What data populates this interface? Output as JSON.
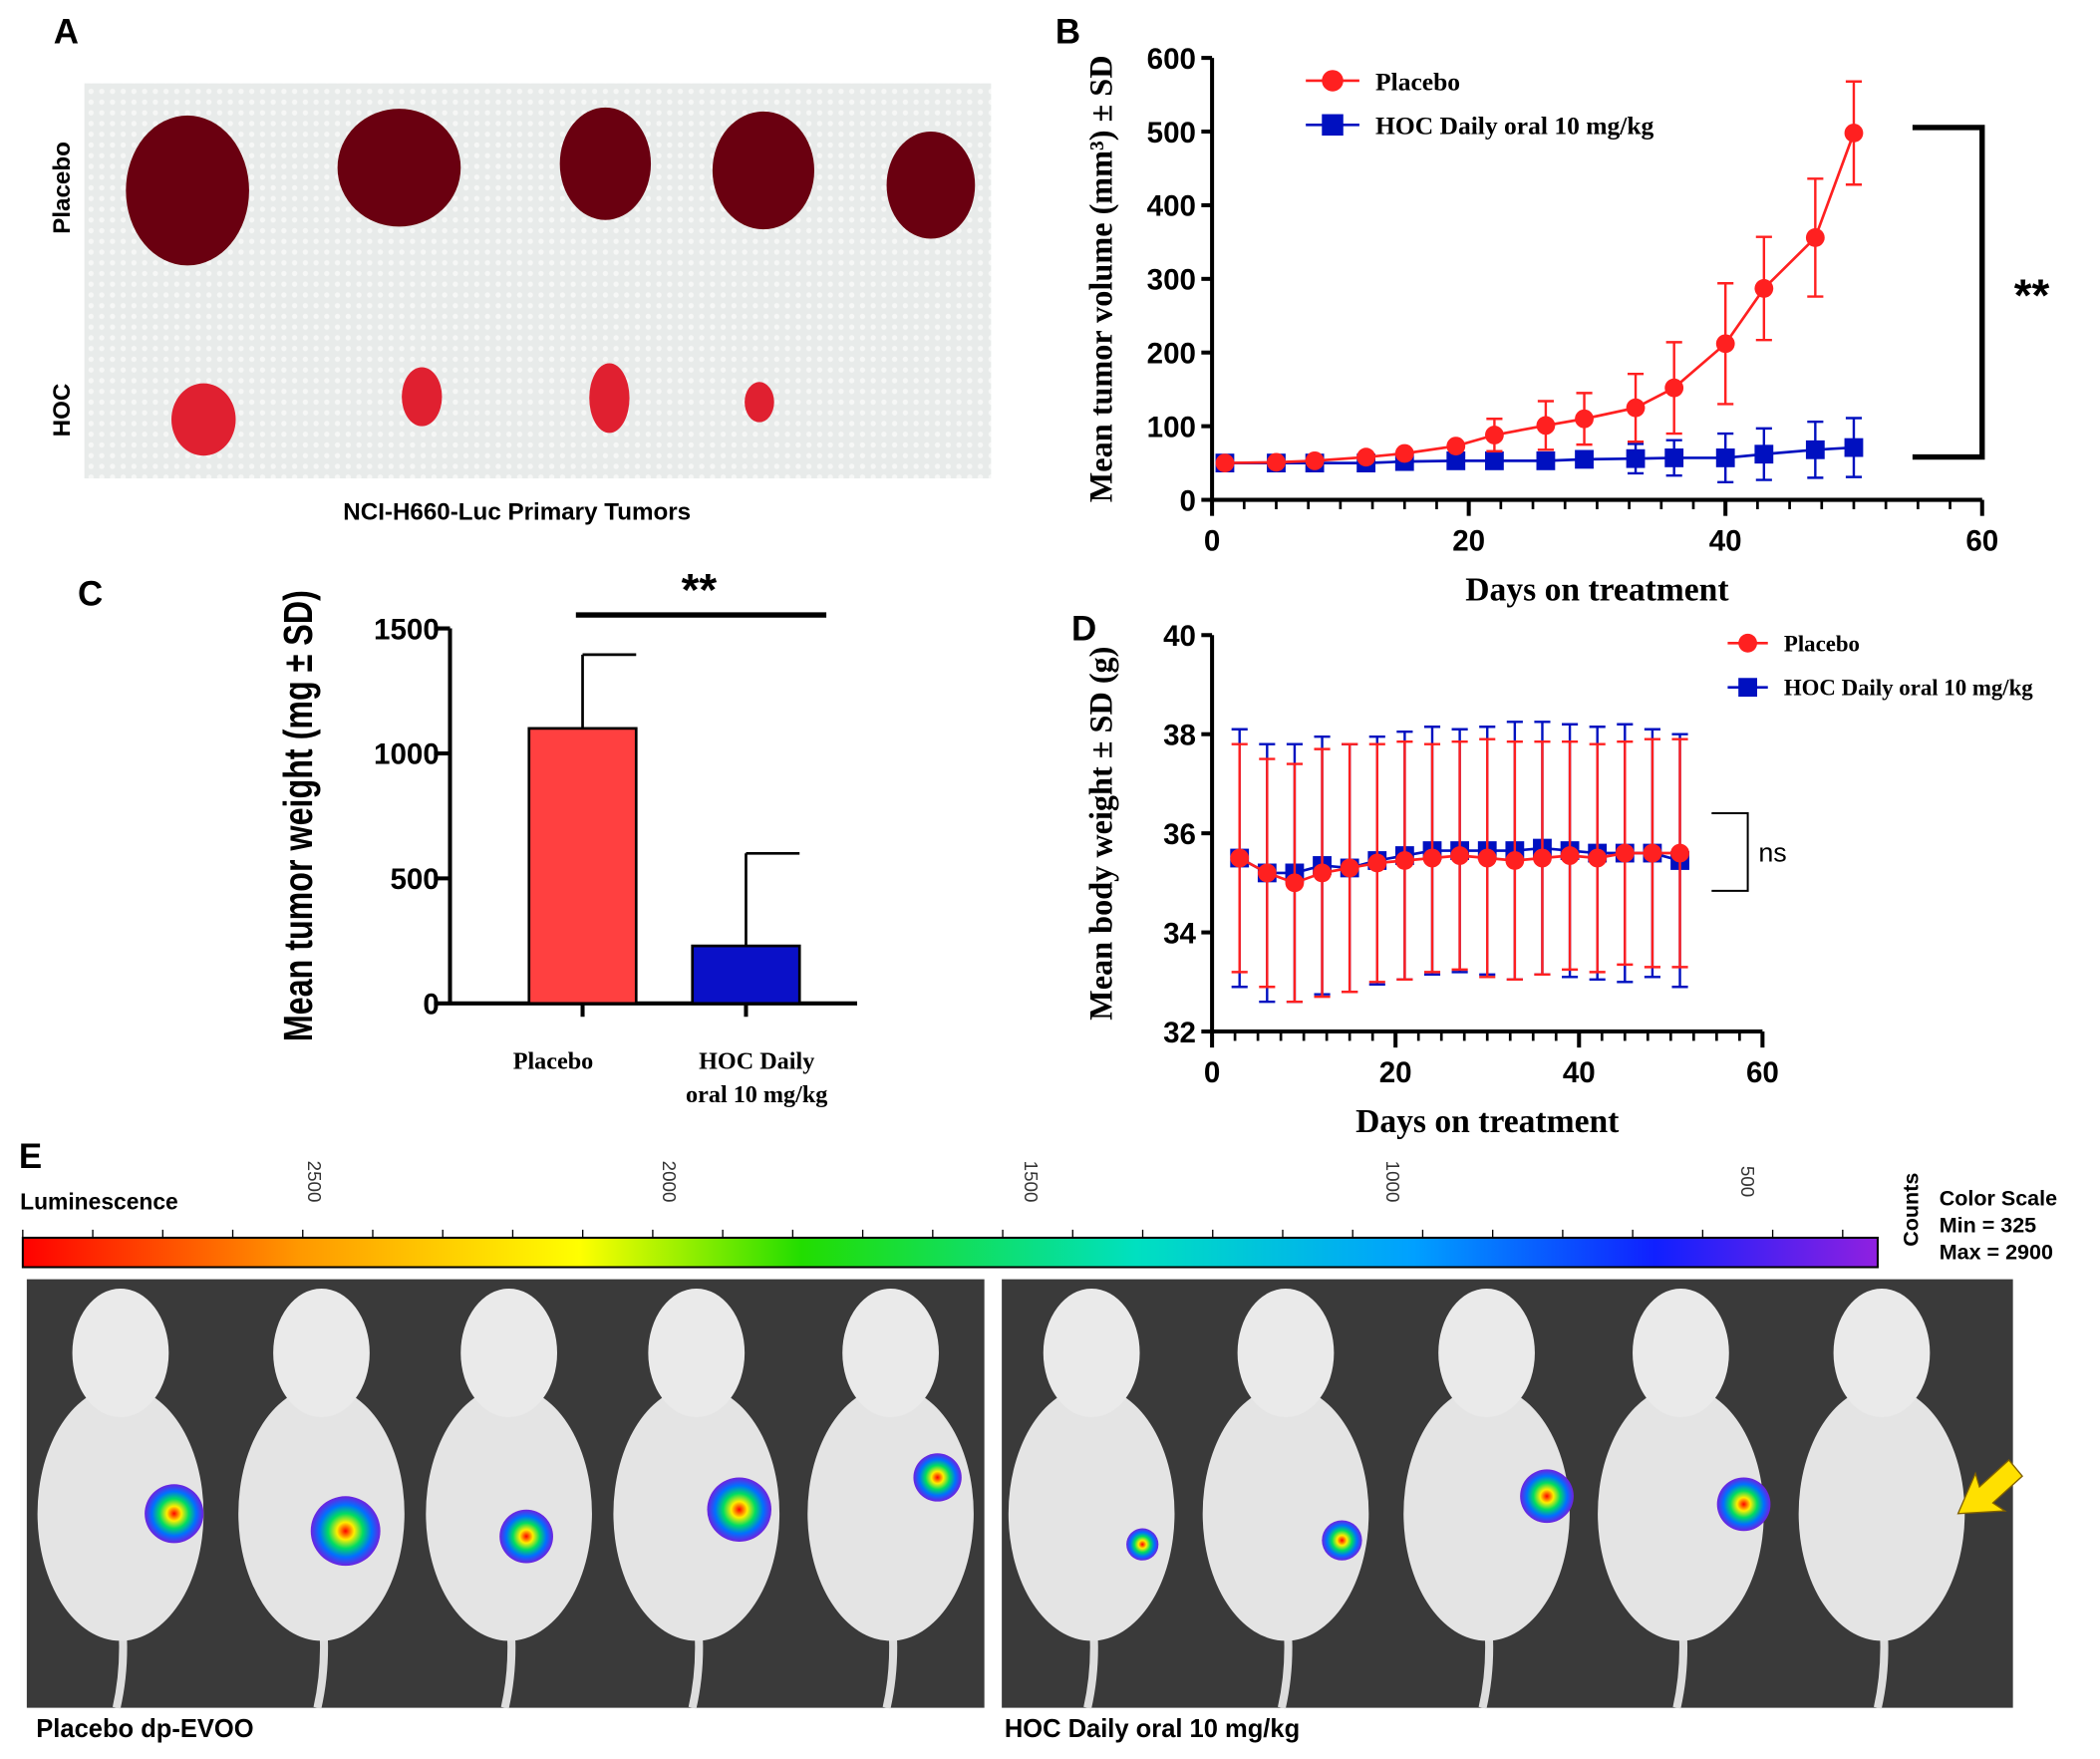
{
  "panels": {
    "a": "A",
    "b": "B",
    "c": "C",
    "d": "D",
    "e": "E"
  },
  "panel_a": {
    "row_labels": [
      "Placebo",
      "HOC"
    ],
    "caption": "NCI-H660-Luc Primary Tumors"
  },
  "panel_e": {
    "scale_title": "Luminescence",
    "scale_ticks": [
      "2500",
      "2000",
      "1500",
      "1000",
      "500"
    ],
    "units": "Counts",
    "color_scale": [
      "Color Scale",
      "Min = 325",
      "Max = 2900"
    ],
    "group_labels": [
      "Placebo dp-EVOO",
      "HOC Daily oral 10 mg/kg"
    ]
  },
  "colors": {
    "placebo": "#ff2020",
    "hoc": "#0010c0",
    "bar_placebo": "#ff4040",
    "bar_hoc": "#0a10c8"
  },
  "chart_data": [
    {
      "id": "B",
      "type": "line",
      "xlabel": "Days on treatment",
      "ylabel": "Mean tumor volume (mm³) ± SD",
      "xlim": [
        0,
        60
      ],
      "ylim": [
        0,
        600
      ],
      "xticks": [
        "0",
        "20",
        "40",
        "60"
      ],
      "yticks": [
        "0",
        "100",
        "200",
        "300",
        "400",
        "500",
        "600"
      ],
      "legend": "top-left",
      "significance": "**",
      "x": [
        1,
        5,
        8,
        12,
        15,
        19,
        22,
        26,
        29,
        33,
        36,
        40,
        43,
        47,
        50
      ],
      "series": [
        {
          "name": "Placebo",
          "marker": "circle",
          "values": [
            50,
            51,
            53,
            58,
            63,
            73,
            88,
            101,
            110,
            125,
            152,
            212,
            287,
            356,
            498
          ],
          "sd": [
            0,
            0,
            0,
            0,
            0,
            0,
            22,
            33,
            35,
            46,
            62,
            82,
            70,
            80,
            70
          ]
        },
        {
          "name": "HOC Daily oral 10 mg/kg",
          "marker": "square",
          "values": [
            50,
            50,
            50,
            50,
            52,
            53,
            53,
            53,
            55,
            56,
            57,
            57,
            62,
            68,
            71
          ],
          "sd": [
            0,
            0,
            0,
            0,
            0,
            0,
            0,
            0,
            0,
            20,
            24,
            33,
            35,
            38,
            40
          ]
        }
      ]
    },
    {
      "id": "C",
      "type": "bar",
      "ylabel": "Mean tumor weight (mg ± SD)",
      "ylim": [
        0,
        1500
      ],
      "yticks": [
        "0",
        "500",
        "1000",
        "1500"
      ],
      "categories": [
        "Placebo",
        "HOC Daily oral 10 mg/kg"
      ],
      "category_lines": [
        [
          "Placebo"
        ],
        [
          "HOC Daily",
          "oral 10 mg/kg"
        ]
      ],
      "values": [
        1100,
        230
      ],
      "sd": [
        295,
        370
      ],
      "significance": "**"
    },
    {
      "id": "D",
      "type": "line",
      "xlabel": "Days on treatment",
      "ylabel": "Mean body weight ± SD (g)",
      "xlim": [
        0,
        60
      ],
      "ylim": [
        32,
        40
      ],
      "xticks": [
        "0",
        "20",
        "40",
        "60"
      ],
      "yticks": [
        "32",
        "34",
        "36",
        "38",
        "40"
      ],
      "legend": "top-right",
      "significance": "ns",
      "x": [
        3,
        6,
        9,
        12,
        15,
        18,
        21,
        24,
        27,
        30,
        33,
        36,
        39,
        42,
        45,
        48,
        51
      ],
      "series": [
        {
          "name": "Placebo",
          "marker": "circle",
          "values": [
            35.5,
            35.2,
            35.0,
            35.2,
            35.3,
            35.4,
            35.45,
            35.5,
            35.55,
            35.5,
            35.45,
            35.5,
            35.55,
            35.5,
            35.6,
            35.6,
            35.6
          ],
          "sd": [
            2.3,
            2.3,
            2.4,
            2.5,
            2.5,
            2.4,
            2.4,
            2.3,
            2.3,
            2.4,
            2.4,
            2.35,
            2.3,
            2.3,
            2.25,
            2.3,
            2.3
          ]
        },
        {
          "name": "HOC Daily oral 10 mg/kg",
          "marker": "square",
          "values": [
            35.5,
            35.2,
            35.2,
            35.35,
            35.3,
            35.45,
            35.55,
            35.65,
            35.65,
            35.65,
            35.65,
            35.7,
            35.65,
            35.6,
            35.6,
            35.6,
            35.45
          ],
          "sd": [
            2.6,
            2.6,
            2.6,
            2.6,
            2.5,
            2.5,
            2.5,
            2.5,
            2.45,
            2.5,
            2.6,
            2.55,
            2.55,
            2.55,
            2.6,
            2.5,
            2.55
          ]
        }
      ]
    }
  ]
}
